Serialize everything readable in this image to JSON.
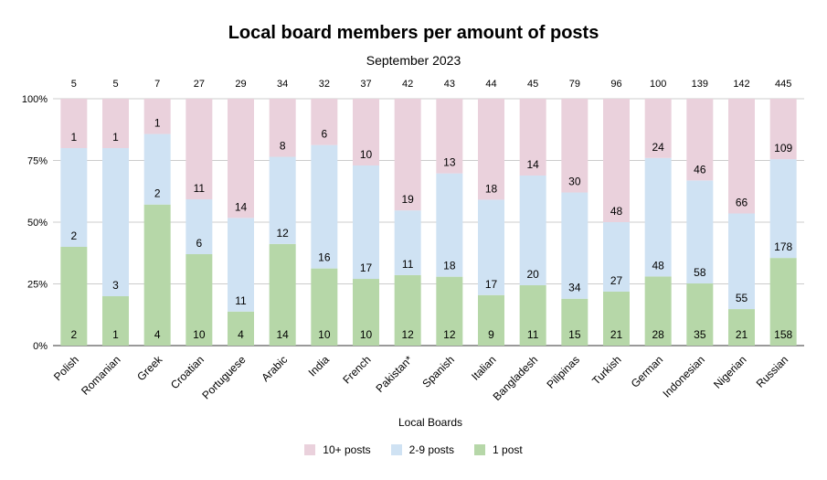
{
  "chart_data": {
    "type": "bar",
    "stacked": "percent",
    "title": "Local board members per amount of posts",
    "subtitle": "September 2023",
    "xlabel": "Local Boards",
    "ylabel": "",
    "ylim": [
      0,
      100
    ],
    "y_ticks": [
      "0%",
      "25%",
      "50%",
      "75%",
      "100%"
    ],
    "grid": true,
    "legend_position": "bottom",
    "categories": [
      "Polish",
      "Romanian",
      "Greek",
      "Croatian",
      "Portuguese",
      "Arabic",
      "India",
      "French",
      "Pakistan*",
      "Spanish",
      "Italian",
      "Bangladesh",
      "Pilipinas",
      "Turkish",
      "German",
      "Indonesian",
      "Nigerian",
      "Russian"
    ],
    "totals": [
      5,
      5,
      7,
      27,
      29,
      34,
      32,
      37,
      42,
      43,
      44,
      45,
      79,
      96,
      100,
      139,
      142,
      445
    ],
    "series": [
      {
        "name": "1 post",
        "color": "#b6d7a8",
        "values": [
          2,
          1,
          4,
          10,
          4,
          14,
          10,
          10,
          12,
          12,
          9,
          11,
          15,
          21,
          28,
          35,
          21,
          158
        ]
      },
      {
        "name": "2-9 posts",
        "color": "#cfe2f3",
        "values": [
          2,
          3,
          2,
          6,
          11,
          12,
          16,
          17,
          11,
          18,
          17,
          20,
          34,
          27,
          48,
          58,
          55,
          178
        ]
      },
      {
        "name": "10+ posts",
        "color": "#ead1dc",
        "values": [
          1,
          1,
          1,
          11,
          14,
          8,
          6,
          10,
          19,
          13,
          18,
          14,
          30,
          48,
          24,
          46,
          66,
          109
        ]
      }
    ],
    "legend_order": [
      "10+ posts",
      "2-9 posts",
      "1 post"
    ]
  }
}
